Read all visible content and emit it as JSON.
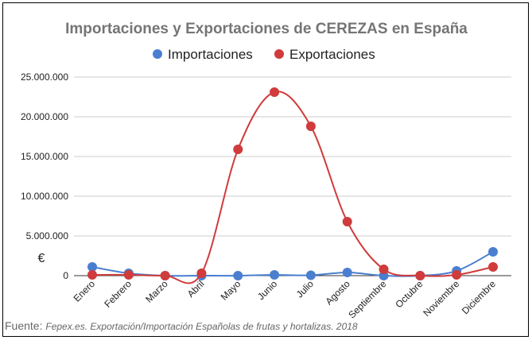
{
  "chart_data": {
    "type": "line",
    "title": "Importaciones y Exportaciones de CEREZAS en España",
    "ylabel": "€",
    "xlabel": "",
    "categories": [
      "Enero",
      "Febrero",
      "Marzo",
      "Abril",
      "Mayo",
      "Junio",
      "Julio",
      "Agosto",
      "Septiembre",
      "Octubre",
      "Noviembre",
      "Diciembre"
    ],
    "ylim": [
      0,
      25000000
    ],
    "yticks": [
      "0",
      "5.000.000",
      "10.000.000",
      "15.000.000",
      "20.000.000",
      "25.000.000"
    ],
    "grid": true,
    "legend": "top",
    "series": [
      {
        "name": "Importaciones",
        "color": "#4a7fcf",
        "values": [
          1100000,
          300000,
          0,
          0,
          0,
          100000,
          50000,
          400000,
          0,
          0,
          600000,
          3000000
        ]
      },
      {
        "name": "Exportaciones",
        "color": "#d03b3b",
        "values": [
          100000,
          100000,
          0,
          300000,
          15900000,
          23100000,
          18800000,
          6800000,
          800000,
          0,
          100000,
          1100000
        ]
      }
    ]
  },
  "source": {
    "label": "Fuente:",
    "text": "Fepex.es. Exportación/Importación Españolas de frutas y hortalizas. 2018"
  }
}
